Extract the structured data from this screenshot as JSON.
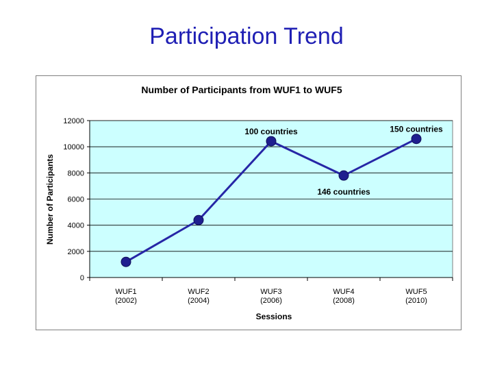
{
  "slide": {
    "title": "Participation Trend"
  },
  "colors": {
    "title": "#1f1fb4",
    "plot_background": "#ccffff",
    "series_line": "#2626a6",
    "marker": "#1f1f8f",
    "gridline": "#000000"
  },
  "chart_data": {
    "type": "line",
    "title": "Number of Participants from WUF1 to WUF5",
    "xlabel": "Sessions",
    "ylabel": "Number of Participants",
    "categories": [
      [
        "WUF1",
        "(2002)"
      ],
      [
        "WUF2",
        "(2004)"
      ],
      [
        "WUF3",
        "(2006)"
      ],
      [
        "WUF4",
        "(2008)"
      ],
      [
        "WUF5",
        "(2010)"
      ]
    ],
    "series": [
      {
        "values": [
          1195,
          4389,
          10422,
          7800,
          10600
        ]
      }
    ],
    "ylim": [
      0,
      12000
    ],
    "yticks": [
      0,
      2000,
      4000,
      6000,
      8000,
      10000,
      12000
    ],
    "grid": true,
    "legend": "none",
    "annotations": [
      {
        "category_index": 2,
        "text": "100 countries",
        "position": "above"
      },
      {
        "category_index": 3,
        "text": "146 countries",
        "position": "below"
      },
      {
        "category_index": 4,
        "text": "150 countries",
        "position": "above"
      }
    ]
  }
}
